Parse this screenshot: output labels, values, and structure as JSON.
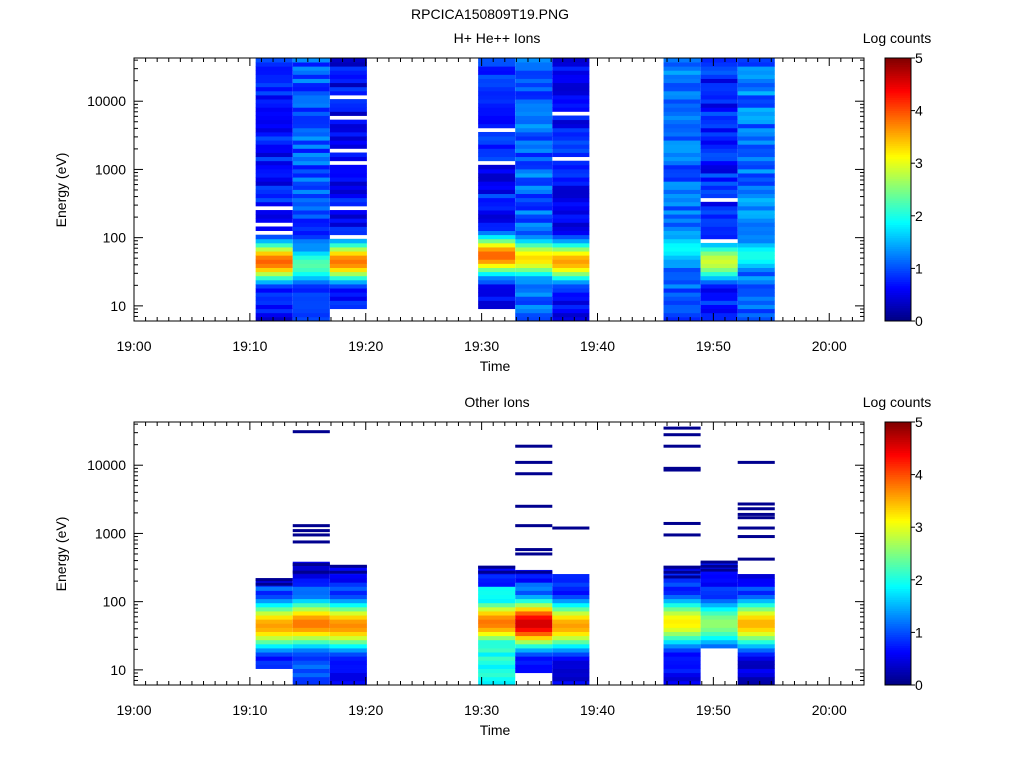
{
  "figure_title": "RPCICA150809T19.PNG",
  "colorbar": {
    "title": "Log counts",
    "ticks": [
      "0",
      "1",
      "2",
      "3",
      "4",
      "5"
    ],
    "min": 0,
    "max": 5,
    "colormap": "jet"
  },
  "chart_data": [
    {
      "type": "heatmap",
      "title": "H+ He++ Ions",
      "xlabel": "Time",
      "ylabel": "Energy (eV)",
      "yscale": "log",
      "xlim": [
        "19:00",
        "20:03"
      ],
      "ylim": [
        6,
        43000
      ],
      "x_ticks": [
        "19:00",
        "19:10",
        "19:20",
        "19:30",
        "19:40",
        "19:50",
        "20:00"
      ],
      "y_ticks": [
        "10",
        "100",
        "1000",
        "10000"
      ],
      "time_columns": [
        {
          "start": "19:10.5",
          "end": "19:13.7"
        },
        {
          "start": "19:13.7",
          "end": "19:16.9"
        },
        {
          "start": "19:16.9",
          "end": "19:20.1"
        },
        {
          "start": "19:29.7",
          "end": "19:32.9"
        },
        {
          "start": "19:32.9",
          "end": "19:36.1"
        },
        {
          "start": "19:36.1",
          "end": "19:39.3"
        },
        {
          "start": "19:45.7",
          "end": "19:48.9"
        },
        {
          "start": "19:48.9",
          "end": "19:52.1"
        },
        {
          "start": "19:52.1",
          "end": "19:55.3"
        }
      ],
      "columns_energy_profile": [
        {
          "emin": 6,
          "emax": 43000,
          "background": 0.7,
          "peak_energy": 45,
          "peak_log_counts": 3.9,
          "empty_bands_eV": [
            270,
            160,
            115
          ]
        },
        {
          "emin": 6,
          "emax": 43000,
          "background": 1.05,
          "peak_energy": 40,
          "peak_log_counts": 2.3,
          "empty_bands_eV": []
        },
        {
          "emin": 9.5,
          "emax": 43000,
          "background": 0.6,
          "peak_energy": 45,
          "peak_log_counts": 3.8,
          "empty_bands_eV": [
            12000,
            5500,
            2000,
            1200,
            260,
            105
          ]
        },
        {
          "emin": 9.5,
          "emax": 43000,
          "background": 0.7,
          "peak_energy": 55,
          "peak_log_counts": 3.9,
          "empty_bands_eV": [
            4000,
            1250
          ]
        },
        {
          "emin": 6,
          "emax": 43000,
          "background": 1.1,
          "peak_energy": 50,
          "peak_log_counts": 3.3,
          "empty_bands_eV": []
        },
        {
          "emin": 6,
          "emax": 43000,
          "background": 0.7,
          "peak_energy": 45,
          "peak_log_counts": 3.6,
          "empty_bands_eV": [
            6300,
            1400
          ]
        },
        {
          "emin": 6,
          "emax": 43000,
          "background": 1.15,
          "peak_energy": 70,
          "peak_log_counts": 1.9,
          "empty_bands_eV": []
        },
        {
          "emin": 6,
          "emax": 43000,
          "background": 0.75,
          "peak_energy": 45,
          "peak_log_counts": 2.9,
          "empty_bands_eV": [
            380,
            90
          ]
        },
        {
          "emin": 6,
          "emax": 43000,
          "background": 1.2,
          "peak_energy": 55,
          "peak_log_counts": 2.0,
          "empty_bands_eV": []
        }
      ]
    },
    {
      "type": "heatmap",
      "title": "Other Ions",
      "xlabel": "Time",
      "ylabel": "Energy (eV)",
      "yscale": "log",
      "xlim": [
        "19:00",
        "20:03"
      ],
      "ylim": [
        6,
        43000
      ],
      "x_ticks": [
        "19:00",
        "19:10",
        "19:20",
        "19:30",
        "19:40",
        "19:50",
        "20:00"
      ],
      "y_ticks": [
        "10",
        "100",
        "1000",
        "10000"
      ],
      "time_columns": [
        {
          "start": "19:10.5",
          "end": "19:13.7"
        },
        {
          "start": "19:13.7",
          "end": "19:16.9"
        },
        {
          "start": "19:16.9",
          "end": "19:20.1"
        },
        {
          "start": "19:29.7",
          "end": "19:32.9"
        },
        {
          "start": "19:32.9",
          "end": "19:36.1"
        },
        {
          "start": "19:36.1",
          "end": "19:39.3"
        },
        {
          "start": "19:45.7",
          "end": "19:48.9"
        },
        {
          "start": "19:48.9",
          "end": "19:52.1"
        },
        {
          "start": "19:52.1",
          "end": "19:55.3"
        }
      ],
      "columns_energy_profile": [
        {
          "emin": 11,
          "emax": 230,
          "peak_energy": 45,
          "peak_log_counts": 3.6,
          "low_energy_log_counts": 0.6,
          "sparse_lines_eV": [
            210,
            180
          ]
        },
        {
          "emin": 6,
          "emax": 390,
          "peak_energy": 48,
          "peak_log_counts": 3.8,
          "low_energy_log_counts": 0.8,
          "sparse_lines_eV": [
            31000,
            1300,
            1100,
            950,
            750,
            350,
            270
          ]
        },
        {
          "emin": 6,
          "emax": 330,
          "peak_energy": 45,
          "peak_log_counts": 3.7,
          "low_energy_log_counts": 0.4,
          "sparse_lines_eV": [
            330,
            270
          ]
        },
        {
          "emin": 6,
          "emax": 320,
          "peak_energy": 50,
          "peak_log_counts": 3.8,
          "low_energy_log_counts": 1.8,
          "sparse_lines_eV": [
            320,
            270
          ]
        },
        {
          "emin": 9,
          "emax": 280,
          "peak_energy": 48,
          "peak_log_counts": 4.6,
          "low_energy_log_counts": 0.6,
          "sparse_lines_eV": [
            19000,
            11000,
            7500,
            2500,
            1300,
            580,
            500,
            270
          ]
        },
        {
          "emin": 6,
          "emax": 240,
          "peak_energy": 45,
          "peak_log_counts": 3.6,
          "low_energy_log_counts": 0.3,
          "sparse_lines_eV": [
            1200
          ]
        },
        {
          "emin": 6,
          "emax": 320,
          "peak_energy": 50,
          "peak_log_counts": 3.2,
          "low_energy_log_counts": 0.4,
          "sparse_lines_eV": [
            35000,
            28000,
            19000,
            9000,
            8500,
            1400,
            950,
            320,
            270,
            230
          ]
        },
        {
          "emin": 22,
          "emax": 380,
          "peak_energy": 48,
          "peak_log_counts": 2.6,
          "low_energy_log_counts": 0.5,
          "sparse_lines_eV": [
            380,
            330,
            290
          ]
        },
        {
          "emin": 6,
          "emax": 270,
          "peak_energy": 48,
          "peak_log_counts": 3.5,
          "low_energy_log_counts": 0.2,
          "sparse_lines_eV": [
            11000,
            2700,
            2300,
            1900,
            1700,
            1200,
            900,
            420
          ]
        }
      ]
    }
  ]
}
